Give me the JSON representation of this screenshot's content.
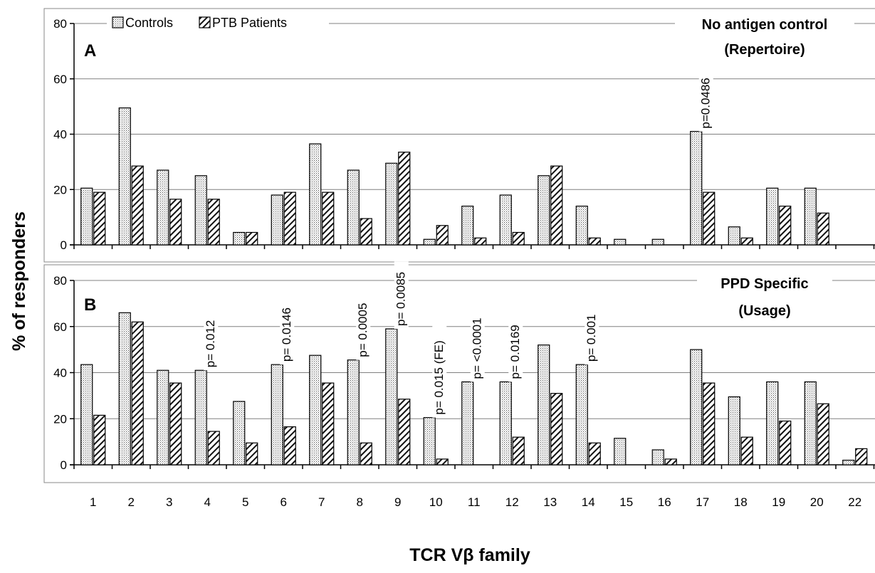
{
  "chart_data": {
    "type": "bar",
    "ylabel": "% of responders",
    "xlabel": "TCR Vβ family",
    "categories": [
      "1",
      "2",
      "3",
      "4",
      "5",
      "6",
      "7",
      "8",
      "9",
      "10",
      "11",
      "12",
      "13",
      "14",
      "15",
      "16",
      "17",
      "18",
      "19",
      "20",
      "22"
    ],
    "legend": [
      "Controls",
      "PTB Patients"
    ],
    "legend_position": "top",
    "ylim": [
      0,
      80
    ],
    "yticks": [
      "0",
      "20",
      "40",
      "60",
      "80"
    ],
    "grid": true,
    "panels": [
      {
        "letter": "A",
        "title_line1": "No antigen control",
        "title_line2": "(Repertoire)",
        "series": [
          {
            "name": "Controls",
            "values": [
              20.5,
              49.5,
              27,
              25,
              4.5,
              18,
              36.5,
              27,
              29.5,
              2,
              14,
              18,
              25,
              14,
              2,
              2,
              41,
              6.5,
              20.5,
              20.5,
              null
            ]
          },
          {
            "name": "PTB Patients",
            "values": [
              19,
              28.5,
              16.5,
              16.5,
              4.5,
              19,
              19,
              9.5,
              33.5,
              7,
              2.5,
              4.5,
              28.5,
              2.5,
              null,
              null,
              19,
              2.5,
              14,
              11.5,
              null
            ]
          }
        ],
        "annotations": [
          {
            "category": "17",
            "text": "p=0.0486"
          }
        ]
      },
      {
        "letter": "B",
        "title_line1": "PPD Specific",
        "title_line2": "(Usage)",
        "series": [
          {
            "name": "Controls",
            "values": [
              43.5,
              66,
              41,
              41,
              27.5,
              43.5,
              47.5,
              45.5,
              59,
              20.5,
              36,
              36,
              52,
              43.5,
              11.5,
              6.5,
              50,
              29.5,
              36,
              36,
              2
            ]
          },
          {
            "name": "PTB Patients",
            "values": [
              21.5,
              62,
              35.5,
              14.5,
              9.5,
              16.5,
              35.5,
              9.5,
              28.5,
              2.5,
              null,
              12,
              31,
              9.5,
              null,
              2.5,
              35.5,
              12,
              19,
              26.5,
              7
            ]
          }
        ],
        "annotations": [
          {
            "category": "4",
            "text": "p= 0.012"
          },
          {
            "category": "6",
            "text": "p= 0.0146"
          },
          {
            "category": "8",
            "text": "p= 0.0005"
          },
          {
            "category": "9",
            "text": "p= 0.0085"
          },
          {
            "category": "10",
            "text": "p= 0.015 (FE)"
          },
          {
            "category": "11",
            "text": "p= <0.0001"
          },
          {
            "category": "12",
            "text": "p= 0.0169"
          },
          {
            "category": "14",
            "text": "p= 0.001"
          }
        ]
      }
    ]
  }
}
